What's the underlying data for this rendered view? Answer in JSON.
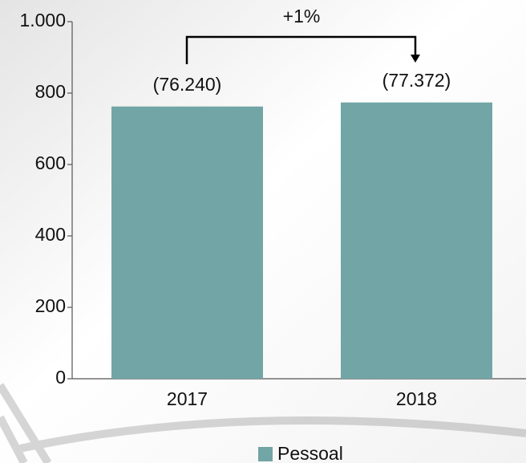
{
  "chart_data": {
    "type": "bar",
    "categories": [
      "2017",
      "2018"
    ],
    "series": [
      {
        "name": "Pessoal",
        "color": "#72a5a5",
        "values": [
          762.4,
          773.72
        ],
        "value_labels": [
          "(76.240)",
          "(77.372)"
        ]
      }
    ],
    "ylim": [
      0,
      1000
    ],
    "yticks": [
      0,
      200,
      400,
      600,
      800,
      {
        "value": 1000,
        "label": "1.000"
      }
    ],
    "annotation": "+1%"
  }
}
